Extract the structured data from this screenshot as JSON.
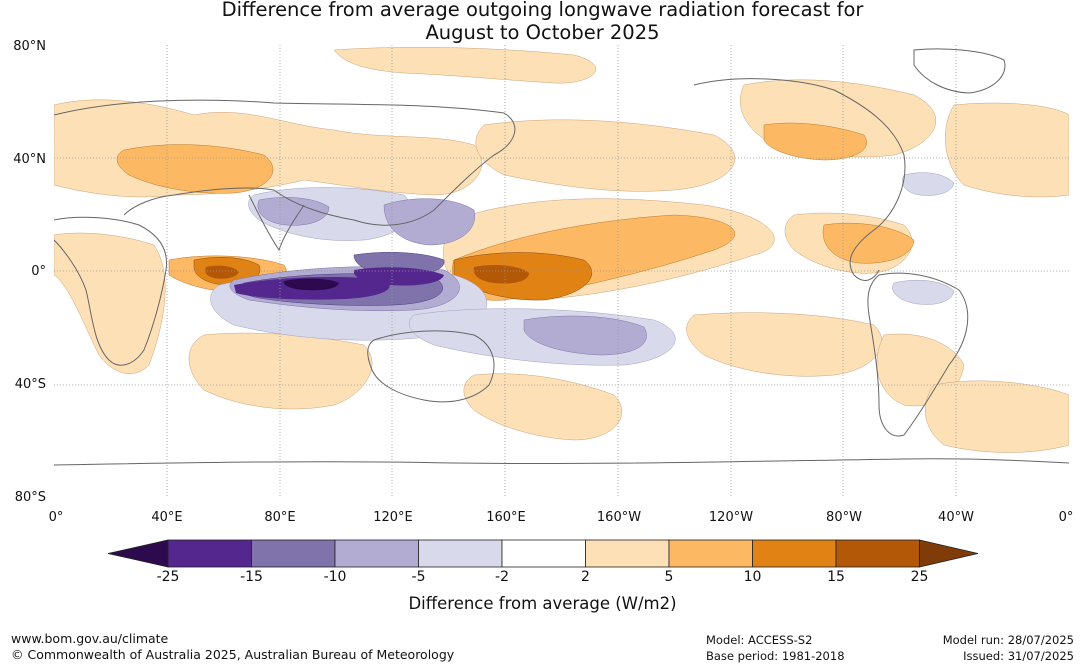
{
  "title": {
    "line1": "Difference from average outgoing longwave radiation forecast for",
    "line2": "August to October 2025"
  },
  "map": {
    "lat_labels": [
      "80°N",
      "40°N",
      "0°",
      "40°S",
      "80°S"
    ],
    "lon_labels": [
      "0°",
      "40°E",
      "80°E",
      "120°E",
      "160°E",
      "160°W",
      "120°W",
      "80°W",
      "40°W",
      "0°"
    ]
  },
  "colorbar": {
    "title": "Difference from average (W/m2)",
    "ticks": [
      "-25",
      "-15",
      "-10",
      "-5",
      "-2",
      "2",
      "5",
      "10",
      "15",
      "25"
    ],
    "colors": [
      "#2d0a4e",
      "#54278f",
      "#8073ac",
      "#b2abd2",
      "#d8daeb",
      "#ffffff",
      "#fee0b6",
      "#fdb863",
      "#e08214",
      "#b35806",
      "#7f3b08"
    ]
  },
  "footer": {
    "url": "www.bom.gov.au/climate",
    "copyright": "© Commonwealth of Australia 2025, Australian Bureau of Meteorology",
    "model": "Model: ACCESS-S2",
    "base_period": "Base period: 1981-2018",
    "model_run": "Model run: 28/07/2025",
    "issued": "Issued: 31/07/2025"
  }
}
